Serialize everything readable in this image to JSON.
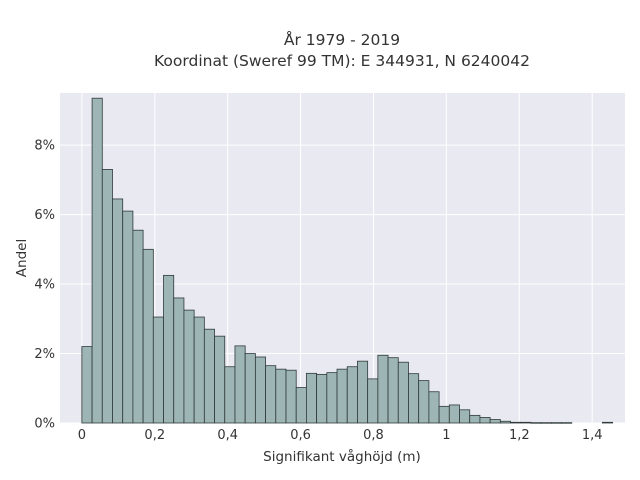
{
  "chart_data": {
    "type": "bar",
    "title_lines": [
      "År 1979 - 2019",
      "Koordinat (Sweref 99 TM): E 344931, N 6240042"
    ],
    "xlabel": "Signifikant våghöjd (m)",
    "ylabel": "Andel",
    "xlim": [
      -0.06,
      1.49
    ],
    "ylim": [
      0,
      9.5
    ],
    "x_ticks": [
      0,
      0.2,
      0.4,
      0.6,
      0.8,
      1.0,
      1.2,
      1.4
    ],
    "x_tick_labels": [
      "0",
      "0,2",
      "0,4",
      "0,6",
      "0,8",
      "1",
      "1,2",
      "1,4"
    ],
    "y_ticks": [
      0,
      2,
      4,
      6,
      8
    ],
    "y_tick_labels": [
      "0%",
      "2%",
      "4%",
      "6%",
      "8%"
    ],
    "grid": true,
    "bin_start": 0.0,
    "bin_width": 0.028,
    "values": [
      2.2,
      9.35,
      7.3,
      6.45,
      6.1,
      5.55,
      5.0,
      3.05,
      4.25,
      3.6,
      3.25,
      3.05,
      2.7,
      2.5,
      1.62,
      2.22,
      2.0,
      1.9,
      1.65,
      1.55,
      1.52,
      1.02,
      1.43,
      1.4,
      1.45,
      1.55,
      1.62,
      1.78,
      1.27,
      1.95,
      1.88,
      1.75,
      1.42,
      1.22,
      0.9,
      0.48,
      0.52,
      0.38,
      0.22,
      0.16,
      0.1,
      0.05,
      0.02,
      0.02,
      0.01,
      0.01,
      0.01,
      0.01,
      0.0,
      0.0,
      0.0,
      0.02
    ],
    "colors": {
      "plot_bg": "#e9e9f1",
      "grid": "#ffffff",
      "bar_fill": "#9db5b4",
      "bar_edge": "#2f3a3a"
    }
  }
}
